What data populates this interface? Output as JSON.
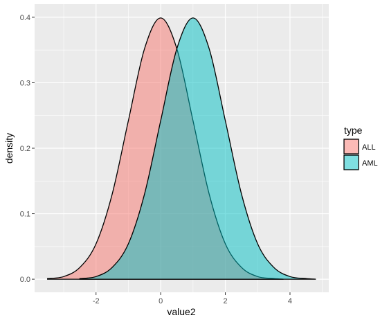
{
  "chart_data": {
    "type": "area",
    "subtype": "density",
    "title": "",
    "xlabel": "value2",
    "ylabel": "density",
    "xlim": [
      -3.9,
      5.2
    ],
    "ylim": [
      -0.02,
      0.42
    ],
    "x_ticks": [
      -2,
      0,
      2,
      4
    ],
    "x_tick_labels": [
      "-2",
      "0",
      "2",
      "4"
    ],
    "y_ticks": [
      0.0,
      0.1,
      0.2,
      0.3,
      0.4
    ],
    "y_tick_labels": [
      "0.0",
      "0.1",
      "0.2",
      "0.3",
      "0.4"
    ],
    "grid": true,
    "background": "#ebebeb",
    "legend": {
      "title": "type",
      "position": "right"
    },
    "series": [
      {
        "name": "ALL",
        "fill_color": "#f8766d",
        "x": [
          -3.5,
          -3.0,
          -2.5,
          -2.0,
          -1.5,
          -1.0,
          -0.5,
          0.0,
          0.5,
          1.0,
          1.5,
          2.0,
          2.5,
          3.0,
          3.5,
          3.8
        ],
        "y": [
          0.001,
          0.004,
          0.018,
          0.054,
          0.13,
          0.242,
          0.352,
          0.399,
          0.352,
          0.242,
          0.13,
          0.054,
          0.018,
          0.004,
          0.001,
          0.0
        ]
      },
      {
        "name": "AML",
        "fill_color": "#00bfc4",
        "x": [
          -2.5,
          -2.0,
          -1.5,
          -1.0,
          -0.5,
          0.0,
          0.5,
          1.0,
          1.5,
          2.0,
          2.5,
          3.0,
          3.5,
          4.0,
          4.5,
          4.8
        ],
        "y": [
          0.001,
          0.004,
          0.018,
          0.054,
          0.13,
          0.242,
          0.352,
          0.399,
          0.352,
          0.242,
          0.13,
          0.054,
          0.018,
          0.004,
          0.001,
          0.0
        ]
      }
    ]
  }
}
